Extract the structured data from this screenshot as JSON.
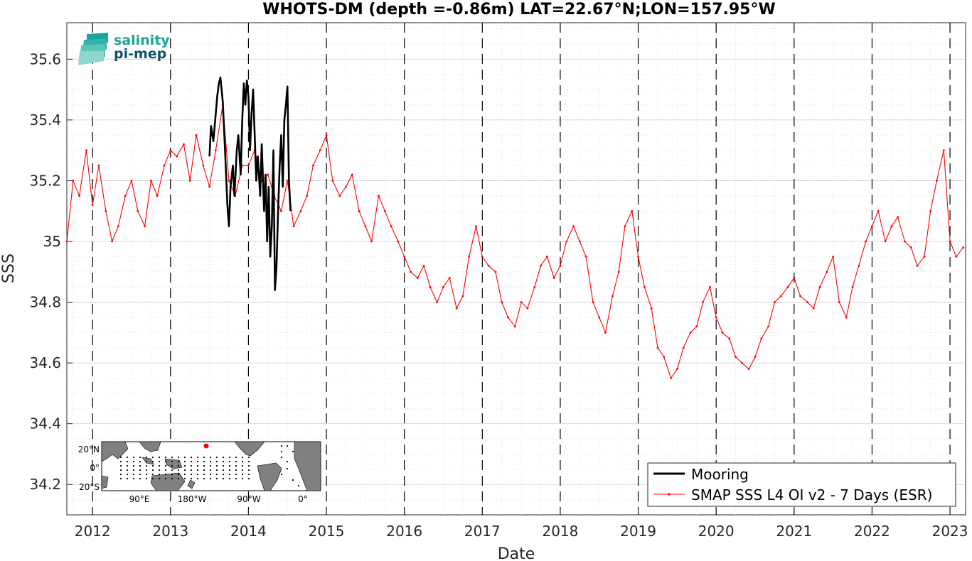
{
  "chart_data": {
    "type": "line",
    "title": "WHOTS-DM (depth =-0.86m) LAT=22.67°N;LON=157.95°W",
    "xlabel": "Date",
    "ylabel": "SSS",
    "xlim": [
      2011.67,
      2023.2
    ],
    "ylim": [
      34.1,
      35.72
    ],
    "x_ticks": [
      "2012",
      "2013",
      "2014",
      "2015",
      "2016",
      "2017",
      "2018",
      "2019",
      "2020",
      "2021",
      "2022",
      "2023"
    ],
    "y_ticks": [
      "34.2",
      "34.4",
      "34.6",
      "34.8",
      "35",
      "35.2",
      "35.4",
      "35.6"
    ],
    "grid": true,
    "year_markers": "dashed vertical lines at each Jan 1",
    "legend_position": "bottom-right",
    "series": [
      {
        "name": "Mooring",
        "color": "#000000",
        "marker": "none",
        "x": [
          2013.5,
          2013.52,
          2013.55,
          2013.58,
          2013.6,
          2013.62,
          2013.64,
          2013.67,
          2013.7,
          2013.73,
          2013.75,
          2013.77,
          2013.8,
          2013.82,
          2013.85,
          2013.87,
          2013.9,
          2013.92,
          2013.94,
          2013.96,
          2013.98,
          2014.0,
          2014.02,
          2014.04,
          2014.06,
          2014.08,
          2014.1,
          2014.12,
          2014.15,
          2014.17,
          2014.2,
          2014.22,
          2014.24,
          2014.26,
          2014.28,
          2014.3,
          2014.32,
          2014.34,
          2014.36,
          2014.38,
          2014.4,
          2014.42,
          2014.44,
          2014.46,
          2014.48,
          2014.5,
          2014.52,
          2014.54
        ],
        "y": [
          35.28,
          35.38,
          35.33,
          35.42,
          35.48,
          35.52,
          35.54,
          35.46,
          35.3,
          35.12,
          35.05,
          35.18,
          35.25,
          35.15,
          35.3,
          35.35,
          35.22,
          35.4,
          35.52,
          35.45,
          35.53,
          35.48,
          35.3,
          35.42,
          35.5,
          35.35,
          35.2,
          35.28,
          35.15,
          35.32,
          35.1,
          35.22,
          35.0,
          35.18,
          34.95,
          35.05,
          35.3,
          34.84,
          34.92,
          35.1,
          35.25,
          35.35,
          35.18,
          35.4,
          35.45,
          35.51,
          35.2,
          35.1
        ]
      },
      {
        "name": "SMAP SSS L4 OI v2 - 7 Days (ESR)",
        "color": "#ff0000",
        "marker": "dot",
        "x": [
          2011.67,
          2011.75,
          2011.83,
          2011.92,
          2012.0,
          2012.08,
          2012.17,
          2012.25,
          2012.33,
          2012.42,
          2012.5,
          2012.58,
          2012.67,
          2012.75,
          2012.83,
          2012.92,
          2013.0,
          2013.08,
          2013.17,
          2013.25,
          2013.33,
          2013.42,
          2013.5,
          2013.58,
          2013.67,
          2013.75,
          2013.83,
          2013.92,
          2014.0,
          2014.08,
          2014.17,
          2014.25,
          2014.33,
          2014.42,
          2014.5,
          2014.58,
          2014.67,
          2014.75,
          2014.83,
          2014.92,
          2015.0,
          2015.08,
          2015.17,
          2015.25,
          2015.33,
          2015.42,
          2015.5,
          2015.58,
          2015.67,
          2015.75,
          2015.83,
          2015.92,
          2016.0,
          2016.08,
          2016.17,
          2016.25,
          2016.33,
          2016.42,
          2016.5,
          2016.58,
          2016.67,
          2016.75,
          2016.83,
          2016.92,
          2017.0,
          2017.08,
          2017.17,
          2017.25,
          2017.33,
          2017.42,
          2017.5,
          2017.58,
          2017.67,
          2017.75,
          2017.83,
          2017.92,
          2018.0,
          2018.08,
          2018.17,
          2018.25,
          2018.33,
          2018.42,
          2018.5,
          2018.58,
          2018.67,
          2018.75,
          2018.83,
          2018.92,
          2019.0,
          2019.08,
          2019.17,
          2019.25,
          2019.33,
          2019.42,
          2019.5,
          2019.58,
          2019.67,
          2019.75,
          2019.83,
          2019.92,
          2020.0,
          2020.08,
          2020.17,
          2020.25,
          2020.33,
          2020.42,
          2020.5,
          2020.58,
          2020.67,
          2020.75,
          2020.83,
          2020.92,
          2021.0,
          2021.08,
          2021.17,
          2021.25,
          2021.33,
          2021.42,
          2021.5,
          2021.58,
          2021.67,
          2021.75,
          2021.83,
          2021.92,
          2022.0,
          2022.08,
          2022.17,
          2022.25,
          2022.33,
          2022.42,
          2022.5,
          2022.58,
          2022.67,
          2022.75,
          2022.83,
          2022.92,
          2023.0,
          2023.08,
          2023.17
        ],
        "y": [
          35.0,
          35.2,
          35.15,
          35.3,
          35.12,
          35.25,
          35.1,
          35.0,
          35.05,
          35.15,
          35.2,
          35.1,
          35.05,
          35.2,
          35.15,
          35.25,
          35.3,
          35.28,
          35.32,
          35.2,
          35.35,
          35.25,
          35.18,
          35.3,
          35.45,
          35.2,
          35.15,
          35.25,
          35.25,
          35.3,
          35.2,
          35.22,
          35.15,
          35.1,
          35.2,
          35.05,
          35.1,
          35.15,
          35.25,
          35.3,
          35.35,
          35.2,
          35.15,
          35.18,
          35.22,
          35.1,
          35.05,
          35.0,
          35.15,
          35.1,
          35.05,
          35.0,
          34.95,
          34.9,
          34.88,
          34.92,
          34.85,
          34.8,
          34.85,
          34.88,
          34.78,
          34.82,
          34.95,
          35.05,
          34.95,
          34.92,
          34.9,
          34.8,
          34.75,
          34.72,
          34.8,
          34.78,
          34.85,
          34.92,
          34.95,
          34.88,
          34.92,
          35.0,
          35.05,
          35.0,
          34.95,
          34.8,
          34.75,
          34.7,
          34.82,
          34.9,
          35.05,
          35.1,
          34.95,
          34.85,
          34.78,
          34.65,
          34.62,
          34.55,
          34.58,
          34.65,
          34.7,
          34.72,
          34.8,
          34.85,
          34.75,
          34.7,
          34.68,
          34.62,
          34.6,
          34.58,
          34.62,
          34.68,
          34.72,
          34.8,
          34.82,
          34.85,
          34.88,
          34.82,
          34.8,
          34.78,
          34.85,
          34.9,
          34.95,
          34.8,
          34.75,
          34.85,
          34.92,
          35.0,
          35.05,
          35.1,
          35.0,
          35.05,
          35.08,
          35.0,
          34.98,
          34.92,
          34.95,
          35.1,
          35.2,
          35.3,
          35.0,
          34.95,
          34.98
        ]
      }
    ],
    "inset_map": {
      "lat_labels": [
        "20°N",
        "0°",
        "20°S"
      ],
      "lon_labels": [
        "90°E",
        "180°W",
        "90°W",
        "0°"
      ],
      "highlight_color": "#ff0000"
    }
  },
  "logo": {
    "line1": "salinity",
    "line2": "pi-mep"
  },
  "legend": {
    "entries": [
      "Mooring",
      "SMAP SSS L4 OI v2 - 7 Days (ESR)"
    ]
  }
}
